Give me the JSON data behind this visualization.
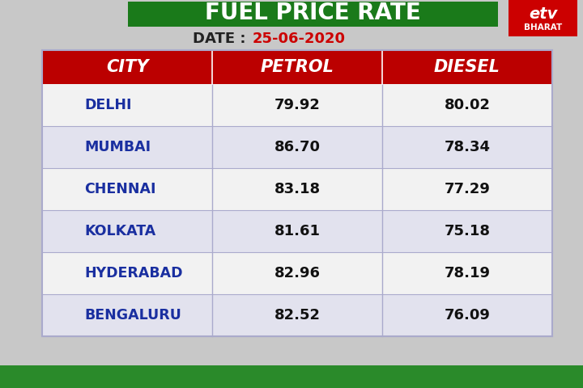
{
  "title": "FUEL PRICE RATE",
  "date_label": "DATE : ",
  "date_value": "25-06-2020",
  "title_bg_color": "#1a7a1a",
  "header_bg_color": "#bb0000",
  "col_headers": [
    "CITY",
    "PETROL",
    "DIESEL"
  ],
  "cities": [
    "DELHI",
    "MUMBAI",
    "CHENNAI",
    "KOLKATA",
    "HYDERABAD",
    "BENGALURU"
  ],
  "petrol": [
    "79.92",
    "86.70",
    "83.18",
    "81.61",
    "82.96",
    "82.52"
  ],
  "diesel": [
    "80.02",
    "78.34",
    "77.29",
    "75.18",
    "78.19",
    "76.09"
  ],
  "city_color": "#1a2fa0",
  "value_color": "#111111",
  "header_text_color": "#ffffff",
  "title_text_color": "#ffffff",
  "date_text_color": "#cc0000",
  "date_label_color": "#222222",
  "row_colors": [
    "#f2f2f2",
    "#e2e2ee"
  ],
  "bg_color": "#c8c8c8",
  "etv_bg_color": "#cc0000",
  "bottom_green": "#2a8a2a",
  "table_border_color": "#aaaacc",
  "fig_width": 7.2,
  "fig_height": 4.8,
  "dpi": 100
}
